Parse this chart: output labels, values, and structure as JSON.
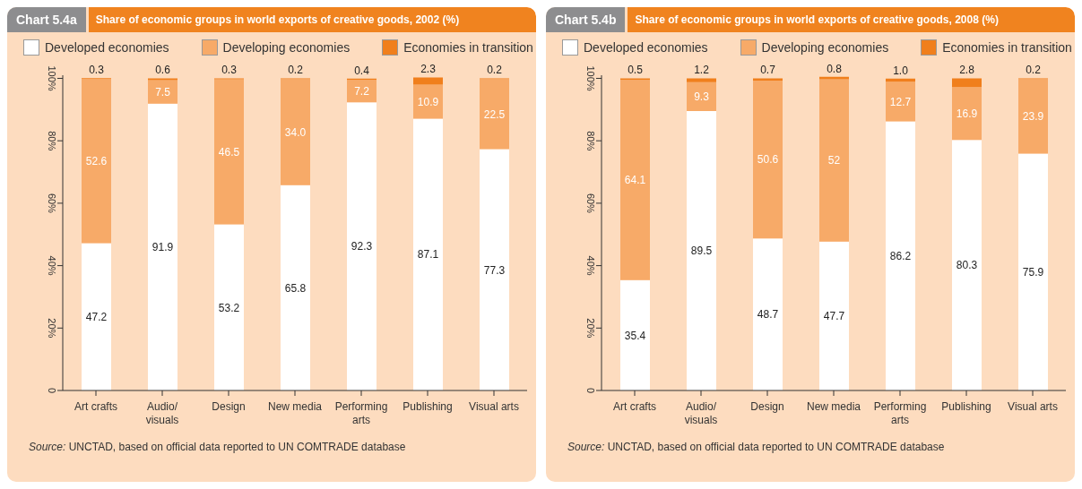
{
  "chart_data": [
    {
      "type": "bar",
      "stacked": true,
      "title": "Chart 5.4a",
      "subtitle": "Share of economic groups in world exports of creative goods, 2002 (%)",
      "categories": [
        "Art crafts",
        "Audio/visuals",
        "Design",
        "New media",
        "Performing arts",
        "Publishing",
        "Visual arts"
      ],
      "series": [
        {
          "name": "Developed economies",
          "color": "#ffffff",
          "values": [
            47.2,
            91.9,
            53.2,
            65.8,
            92.3,
            87.1,
            77.3
          ],
          "value_labels": [
            "47.2",
            "91.9",
            "53.2",
            "65.8",
            "92.3",
            "87.1",
            "77.3"
          ]
        },
        {
          "name": "Developing economies",
          "color": "#f7aa68",
          "values": [
            52.6,
            7.5,
            46.5,
            34.0,
            7.2,
            10.9,
            22.5
          ],
          "value_labels": [
            "52.6",
            "7.5",
            "46.5",
            "34.0",
            "7.2",
            "10.9",
            "22.5"
          ]
        },
        {
          "name": "Economies in transition",
          "color": "#f07f1c",
          "values": [
            0.3,
            0.6,
            0.3,
            0.2,
            0.4,
            2.3,
            0.2
          ],
          "value_labels": [
            "0.3",
            "0.6",
            "0.3",
            "0.2",
            "0.4",
            "2.3",
            "0.2"
          ]
        }
      ],
      "ylim": [
        0,
        101
      ],
      "yticks": [
        {
          "value": 0,
          "label": "0"
        },
        {
          "value": 20,
          "label": "20%"
        },
        {
          "value": 40,
          "label": "40%"
        },
        {
          "value": 60,
          "label": "60%"
        },
        {
          "value": 80,
          "label": "80%"
        },
        {
          "value": 100,
          "label": "100%"
        }
      ],
      "legend": "top",
      "grid": false,
      "annotations": [
        "Source:  UNCTAD, based on official data reported to UN COMTRADE database"
      ]
    },
    {
      "type": "bar",
      "stacked": true,
      "title": "Chart 5.4b",
      "subtitle": "Share of economic groups in world exports of creative goods, 2008 (%)",
      "categories": [
        "Art crafts",
        "Audio/visuals",
        "Design",
        "New media",
        "Performing arts",
        "Publishing",
        "Visual arts"
      ],
      "series": [
        {
          "name": "Developed economies",
          "color": "#ffffff",
          "values": [
            35.4,
            89.5,
            48.7,
            47.7,
            86.2,
            80.3,
            75.9
          ],
          "value_labels": [
            "35.4",
            "89.5",
            "48.7",
            "47.7",
            "86.2",
            "80.3",
            "75.9"
          ]
        },
        {
          "name": "Developing economies",
          "color": "#f7aa68",
          "values": [
            64.1,
            9.3,
            50.6,
            52,
            12.7,
            16.9,
            23.9
          ],
          "value_labels": [
            "64.1",
            "9.3",
            "50.6",
            "52",
            "12.7",
            "16.9",
            "23.9"
          ]
        },
        {
          "name": "Economies in transition",
          "color": "#f07f1c",
          "values": [
            0.5,
            1.2,
            0.7,
            0.8,
            1.0,
            2.8,
            0.2
          ],
          "value_labels": [
            "0.5",
            "1.2",
            "0.7",
            "0.8",
            "1.0",
            "2.8",
            "0.2"
          ]
        }
      ],
      "ylim": [
        0,
        101
      ],
      "yticks": [
        {
          "value": 0,
          "label": "0"
        },
        {
          "value": 20,
          "label": "20%"
        },
        {
          "value": 40,
          "label": "40%"
        },
        {
          "value": 60,
          "label": "60%"
        },
        {
          "value": 80,
          "label": "80%"
        },
        {
          "value": 100,
          "label": "100%"
        }
      ],
      "legend": "top",
      "grid": false,
      "annotations": [
        "Source:  UNCTAD, based on official data reported to UN COMTRADE database"
      ]
    }
  ]
}
